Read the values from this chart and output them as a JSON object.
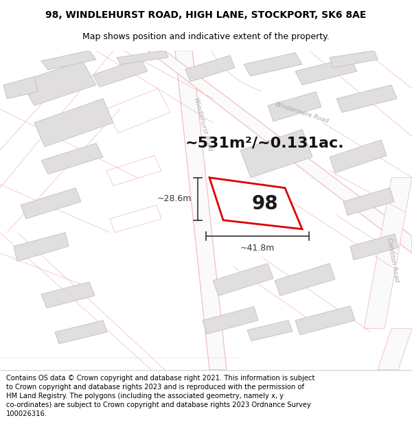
{
  "title_line1": "98, WINDLEHURST ROAD, HIGH LANE, STOCKPORT, SK6 8AE",
  "title_line2": "Map shows position and indicative extent of the property.",
  "footer_text": "Contains OS data © Crown copyright and database right 2021. This information is subject to Crown copyright and database rights 2023 and is reproduced with the permission of HM Land Registry. The polygons (including the associated geometry, namely x, y co-ordinates) are subject to Crown copyright and database rights 2023 Ordnance Survey 100026316.",
  "area_text": "~531m²/~0.131ac.",
  "property_number": "98",
  "dim_width": "~41.8m",
  "dim_height": "~28.6m",
  "map_bg": "#ffffff",
  "fig_bg": "#ffffff",
  "road_outline_color": "#f0b8b8",
  "road_fill": "#ffffff",
  "building_fill": "#e0dede",
  "building_edge": "#c8c4c4",
  "property_fill": "#ffffff",
  "property_edge": "#dd0000",
  "property_edge_lw": 2.0,
  "dim_color": "#333333",
  "label_color": "#aaaaaa",
  "title_fontsize": 10,
  "subtitle_fontsize": 9,
  "footer_fontsize": 7.2,
  "area_fontsize": 16,
  "number_fontsize": 20,
  "road_lw": 0.8
}
